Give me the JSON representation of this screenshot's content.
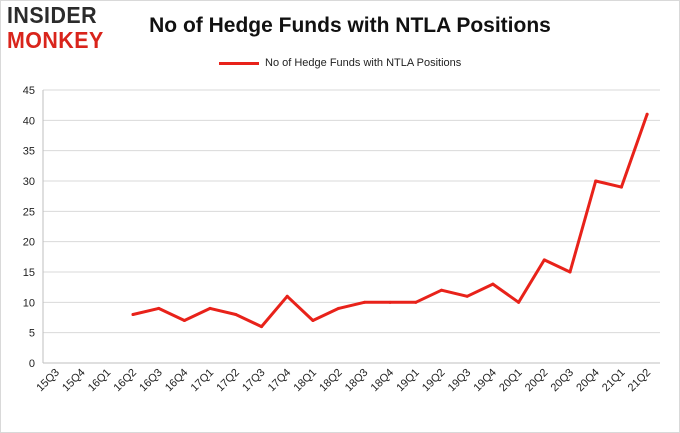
{
  "logo": {
    "line1": "INSIDER",
    "line2": "MONKEY"
  },
  "colors": {
    "series": "#e8221a",
    "grid": "#d9d9d9",
    "axis": "#bfbfbf",
    "logo_red": "#d9241b"
  },
  "chart_data": {
    "type": "line",
    "title": "No of Hedge Funds with NTLA Positions",
    "xlabel": "",
    "ylabel": "",
    "categories": [
      "15Q3",
      "15Q4",
      "16Q1",
      "16Q2",
      "16Q3",
      "16Q4",
      "17Q1",
      "17Q2",
      "17Q3",
      "17Q4",
      "18Q1",
      "18Q2",
      "18Q3",
      "18Q4",
      "19Q1",
      "19Q2",
      "19Q3",
      "19Q4",
      "20Q1",
      "20Q2",
      "20Q3",
      "20Q4",
      "21Q1",
      "21Q2"
    ],
    "series": [
      {
        "name": "No of Hedge Funds with NTLA Positions",
        "values": [
          null,
          null,
          null,
          8,
          9,
          7,
          9,
          8,
          6,
          11,
          7,
          9,
          10,
          10,
          10,
          12,
          11,
          13,
          10,
          17,
          15,
          30,
          29,
          41
        ]
      }
    ],
    "ylim": [
      0,
      45
    ],
    "yticks": [
      0,
      5,
      10,
      15,
      20,
      25,
      30,
      35,
      40,
      45
    ],
    "grid": "horizontal",
    "legend_position": "top"
  }
}
